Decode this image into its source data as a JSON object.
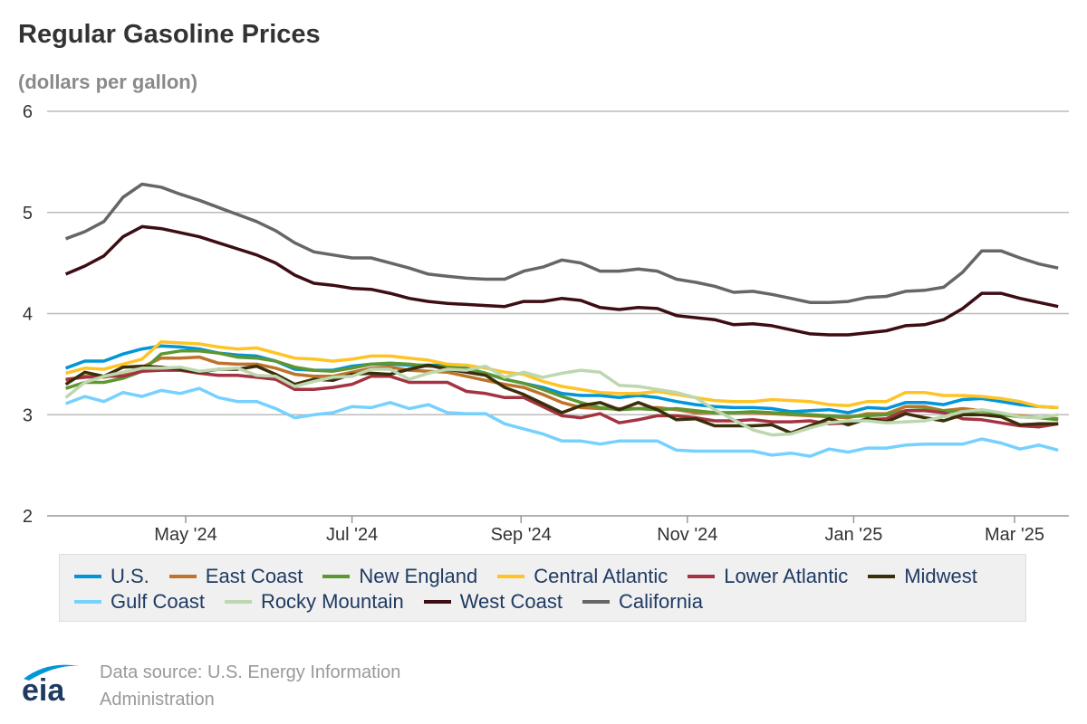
{
  "chart_data": {
    "type": "line",
    "title": "Regular Gasoline Prices",
    "subtitle": "(dollars per gallon)",
    "ylim": [
      2,
      6
    ],
    "yticks": [
      2,
      3,
      4,
      5,
      6
    ],
    "xticks": [
      {
        "date": "2024-05-01",
        "label": "May '24"
      },
      {
        "date": "2024-07-01",
        "label": "Jul '24"
      },
      {
        "date": "2024-09-01",
        "label": "Sep '24"
      },
      {
        "date": "2024-11-01",
        "label": "Nov '24"
      },
      {
        "date": "2025-01-01",
        "label": "Jan '25"
      },
      {
        "date": "2025-03-01",
        "label": "Mar '25"
      }
    ],
    "grid": "horizontal",
    "legend_position": "bottom",
    "x": [
      "2024-03-18",
      "2024-03-25",
      "2024-04-01",
      "2024-04-08",
      "2024-04-15",
      "2024-04-22",
      "2024-04-29",
      "2024-05-06",
      "2024-05-13",
      "2024-05-20",
      "2024-05-27",
      "2024-06-03",
      "2024-06-10",
      "2024-06-17",
      "2024-06-24",
      "2024-07-01",
      "2024-07-08",
      "2024-07-15",
      "2024-07-22",
      "2024-07-29",
      "2024-08-05",
      "2024-08-12",
      "2024-08-19",
      "2024-08-26",
      "2024-09-02",
      "2024-09-09",
      "2024-09-16",
      "2024-09-23",
      "2024-09-30",
      "2024-10-07",
      "2024-10-14",
      "2024-10-21",
      "2024-10-28",
      "2024-11-04",
      "2024-11-11",
      "2024-11-18",
      "2024-11-25",
      "2024-12-02",
      "2024-12-09",
      "2024-12-16",
      "2024-12-23",
      "2024-12-30",
      "2025-01-06",
      "2025-01-13",
      "2025-01-20",
      "2025-01-27",
      "2025-02-03",
      "2025-02-10",
      "2025-02-17",
      "2025-02-24",
      "2025-03-03",
      "2025-03-10",
      "2025-03-17"
    ],
    "series": [
      {
        "name": "U.S.",
        "color": "#0096d7",
        "values": [
          3.46,
          3.53,
          3.53,
          3.6,
          3.65,
          3.68,
          3.67,
          3.65,
          3.61,
          3.59,
          3.58,
          3.53,
          3.45,
          3.44,
          3.44,
          3.48,
          3.5,
          3.5,
          3.49,
          3.49,
          3.49,
          3.46,
          3.41,
          3.35,
          3.31,
          3.27,
          3.21,
          3.19,
          3.19,
          3.17,
          3.19,
          3.17,
          3.13,
          3.1,
          3.08,
          3.07,
          3.07,
          3.06,
          3.03,
          3.04,
          3.05,
          3.02,
          3.07,
          3.06,
          3.12,
          3.12,
          3.1,
          3.15,
          3.16,
          3.13,
          3.1,
          3.08,
          3.07
        ]
      },
      {
        "name": "East Coast",
        "color": "#bd732a",
        "values": [
          3.34,
          3.38,
          3.37,
          3.41,
          3.47,
          3.56,
          3.56,
          3.57,
          3.51,
          3.5,
          3.5,
          3.46,
          3.4,
          3.38,
          3.38,
          3.42,
          3.46,
          3.47,
          3.44,
          3.43,
          3.42,
          3.38,
          3.34,
          3.3,
          3.27,
          3.2,
          3.12,
          3.07,
          3.06,
          3.06,
          3.06,
          3.07,
          3.05,
          3.02,
          3.02,
          3.02,
          3.02,
          3.01,
          3.0,
          2.99,
          2.98,
          2.97,
          3.01,
          3.01,
          3.08,
          3.08,
          3.04,
          3.06,
          3.04,
          3.01,
          2.99,
          2.97,
          2.96
        ]
      },
      {
        "name": "New England",
        "color": "#5d9732",
        "values": [
          3.26,
          3.32,
          3.32,
          3.36,
          3.43,
          3.6,
          3.63,
          3.63,
          3.61,
          3.57,
          3.56,
          3.53,
          3.47,
          3.44,
          3.43,
          3.46,
          3.5,
          3.51,
          3.5,
          3.48,
          3.48,
          3.45,
          3.41,
          3.35,
          3.31,
          3.25,
          3.18,
          3.12,
          3.07,
          3.05,
          3.06,
          3.05,
          3.06,
          3.04,
          3.02,
          3.02,
          3.03,
          3.02,
          3.01,
          3.0,
          2.99,
          2.98,
          2.99,
          3.0,
          3.04,
          3.05,
          3.04,
          3.02,
          3.04,
          3.0,
          2.98,
          2.97,
          2.95
        ]
      },
      {
        "name": "Central Atlantic",
        "color": "#ffc424",
        "values": [
          3.41,
          3.46,
          3.45,
          3.5,
          3.55,
          3.72,
          3.71,
          3.7,
          3.67,
          3.65,
          3.66,
          3.61,
          3.56,
          3.55,
          3.53,
          3.55,
          3.58,
          3.58,
          3.56,
          3.54,
          3.5,
          3.49,
          3.46,
          3.42,
          3.4,
          3.33,
          3.28,
          3.25,
          3.22,
          3.21,
          3.21,
          3.23,
          3.2,
          3.17,
          3.14,
          3.13,
          3.13,
          3.15,
          3.14,
          3.13,
          3.1,
          3.09,
          3.13,
          3.13,
          3.22,
          3.22,
          3.19,
          3.19,
          3.18,
          3.16,
          3.13,
          3.08,
          3.07
        ]
      },
      {
        "name": "Lower Atlantic",
        "color": "#a33340",
        "values": [
          3.35,
          3.37,
          3.38,
          3.38,
          3.43,
          3.44,
          3.44,
          3.41,
          3.39,
          3.39,
          3.37,
          3.35,
          3.25,
          3.25,
          3.27,
          3.3,
          3.38,
          3.38,
          3.32,
          3.32,
          3.32,
          3.23,
          3.21,
          3.17,
          3.17,
          3.08,
          2.99,
          2.97,
          3.01,
          2.92,
          2.95,
          2.99,
          2.99,
          2.97,
          2.94,
          2.94,
          2.95,
          2.93,
          2.93,
          2.94,
          2.91,
          2.92,
          2.95,
          2.96,
          3.04,
          3.04,
          3.02,
          2.96,
          2.95,
          2.92,
          2.89,
          2.88,
          2.91
        ]
      },
      {
        "name": "Midwest",
        "color": "#3b2e0a",
        "values": [
          3.3,
          3.42,
          3.38,
          3.47,
          3.48,
          3.47,
          3.45,
          3.42,
          3.45,
          3.45,
          3.48,
          3.4,
          3.3,
          3.35,
          3.34,
          3.4,
          3.41,
          3.4,
          3.45,
          3.49,
          3.45,
          3.42,
          3.39,
          3.27,
          3.2,
          3.11,
          3.02,
          3.09,
          3.12,
          3.05,
          3.12,
          3.05,
          2.95,
          2.96,
          2.89,
          2.89,
          2.89,
          2.9,
          2.82,
          2.89,
          2.96,
          2.9,
          2.96,
          2.93,
          3.01,
          2.97,
          2.94,
          3.0,
          3.0,
          2.98,
          2.9,
          2.91,
          2.91
        ]
      },
      {
        "name": "Gulf Coast",
        "color": "#76d1ff",
        "values": [
          3.11,
          3.18,
          3.13,
          3.22,
          3.18,
          3.24,
          3.21,
          3.26,
          3.17,
          3.13,
          3.13,
          3.06,
          2.97,
          3.0,
          3.02,
          3.08,
          3.07,
          3.12,
          3.06,
          3.1,
          3.02,
          3.01,
          3.01,
          2.91,
          2.86,
          2.81,
          2.74,
          2.74,
          2.71,
          2.74,
          2.74,
          2.74,
          2.65,
          2.64,
          2.64,
          2.64,
          2.64,
          2.6,
          2.62,
          2.59,
          2.66,
          2.63,
          2.67,
          2.67,
          2.7,
          2.71,
          2.71,
          2.71,
          2.76,
          2.72,
          2.66,
          2.7,
          2.65
        ]
      },
      {
        "name": "Rocky Mountain",
        "color": "#bdd7ae",
        "values": [
          3.17,
          3.32,
          3.38,
          3.42,
          3.46,
          3.46,
          3.47,
          3.43,
          3.45,
          3.46,
          3.39,
          3.38,
          3.28,
          3.33,
          3.37,
          3.38,
          3.45,
          3.45,
          3.35,
          3.41,
          3.45,
          3.44,
          3.48,
          3.37,
          3.42,
          3.37,
          3.41,
          3.44,
          3.42,
          3.29,
          3.28,
          3.25,
          3.22,
          3.17,
          3.05,
          2.95,
          2.85,
          2.8,
          2.81,
          2.87,
          2.92,
          2.94,
          2.94,
          2.92,
          2.93,
          2.94,
          2.98,
          3.03,
          3.05,
          3.02,
          2.98,
          2.97,
          3.0
        ]
      },
      {
        "name": "West Coast",
        "color": "#3d0d14",
        "values": [
          4.39,
          4.47,
          4.57,
          4.76,
          4.86,
          4.84,
          4.8,
          4.76,
          4.7,
          4.64,
          4.58,
          4.5,
          4.38,
          4.3,
          4.28,
          4.25,
          4.24,
          4.2,
          4.15,
          4.12,
          4.1,
          4.09,
          4.08,
          4.07,
          4.12,
          4.12,
          4.15,
          4.13,
          4.06,
          4.04,
          4.06,
          4.05,
          3.98,
          3.96,
          3.94,
          3.89,
          3.9,
          3.88,
          3.84,
          3.8,
          3.79,
          3.79,
          3.81,
          3.83,
          3.88,
          3.89,
          3.94,
          4.05,
          4.2,
          4.2,
          4.15,
          4.11,
          4.07
        ]
      },
      {
        "name": "California",
        "color": "#666666",
        "values": [
          4.74,
          4.81,
          4.91,
          5.15,
          5.28,
          5.25,
          5.18,
          5.12,
          5.05,
          4.98,
          4.91,
          4.82,
          4.7,
          4.61,
          4.58,
          4.55,
          4.55,
          4.5,
          4.45,
          4.39,
          4.37,
          4.35,
          4.34,
          4.34,
          4.42,
          4.46,
          4.53,
          4.5,
          4.42,
          4.42,
          4.44,
          4.42,
          4.34,
          4.31,
          4.27,
          4.21,
          4.22,
          4.19,
          4.15,
          4.11,
          4.11,
          4.12,
          4.16,
          4.17,
          4.22,
          4.23,
          4.26,
          4.41,
          4.62,
          4.62,
          4.55,
          4.49,
          4.45
        ]
      }
    ]
  },
  "footer": {
    "source_line1": "Data source: U.S. Energy Information",
    "source_line2": "Administration",
    "logo_text": "eia"
  }
}
